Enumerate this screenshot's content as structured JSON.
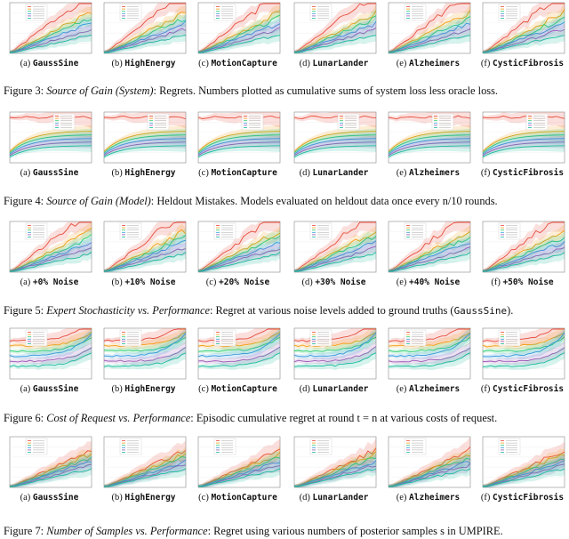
{
  "figures": [
    {
      "id": "fig3",
      "kind": "system",
      "panels": [
        {
          "letter": "(a)",
          "name": "GaussSine"
        },
        {
          "letter": "(b)",
          "name": "HighEnergy"
        },
        {
          "letter": "(c)",
          "name": "MotionCapture"
        },
        {
          "letter": "(d)",
          "name": "LunarLander"
        },
        {
          "letter": "(e)",
          "name": "Alzheimers"
        },
        {
          "letter": "(f)",
          "name": "CysticFibrosis"
        }
      ],
      "caption": {
        "label": "Figure 3:",
        "title": "Source of Gain (System)",
        "text": ": Regrets. Numbers plotted as cumulative sums of system loss less oracle loss."
      }
    },
    {
      "id": "fig4",
      "kind": "model",
      "panels": [
        {
          "letter": "(a)",
          "name": "GaussSine"
        },
        {
          "letter": "(b)",
          "name": "HighEnergy"
        },
        {
          "letter": "(c)",
          "name": "MotionCapture"
        },
        {
          "letter": "(d)",
          "name": "LunarLander"
        },
        {
          "letter": "(e)",
          "name": "Alzheimers"
        },
        {
          "letter": "(f)",
          "name": "CysticFibrosis"
        }
      ],
      "caption": {
        "label": "Figure 4:",
        "title": "Source of Gain (Model)",
        "text": ": Heldout Mistakes. Models evaluated on heldout data once every n/10 rounds."
      }
    },
    {
      "id": "fig5",
      "kind": "noise",
      "panels": [
        {
          "letter": "(a)",
          "name": "+0% Noise"
        },
        {
          "letter": "(b)",
          "name": "+10% Noise"
        },
        {
          "letter": "(c)",
          "name": "+20% Noise"
        },
        {
          "letter": "(d)",
          "name": "+30% Noise"
        },
        {
          "letter": "(e)",
          "name": "+40% Noise"
        },
        {
          "letter": "(f)",
          "name": "+50% Noise"
        }
      ],
      "caption": {
        "label": "Figure 5:",
        "title": "Expert Stochasticity vs. Performance",
        "text": ": Regret at various noise levels added to ground truths (",
        "mono": "GaussSine",
        "tail": ")."
      }
    },
    {
      "id": "fig6",
      "kind": "cost",
      "panels": [
        {
          "letter": "(a)",
          "name": "GaussSine"
        },
        {
          "letter": "(b)",
          "name": "HighEnergy"
        },
        {
          "letter": "(c)",
          "name": "MotionCapture"
        },
        {
          "letter": "(d)",
          "name": "LunarLander"
        },
        {
          "letter": "(e)",
          "name": "Alzheimers"
        },
        {
          "letter": "(f)",
          "name": "CysticFibrosis"
        }
      ],
      "caption": {
        "label": "Figure 6:",
        "title": "Cost of Request vs. Performance",
        "text": ": Episodic cumulative regret at round t = n at various costs of request."
      }
    },
    {
      "id": "fig7",
      "kind": "samples",
      "panels": [
        {
          "letter": "(a)",
          "name": "GaussSine"
        },
        {
          "letter": "(b)",
          "name": "HighEnergy"
        },
        {
          "letter": "(c)",
          "name": "MotionCapture"
        },
        {
          "letter": "(d)",
          "name": "LunarLander"
        },
        {
          "letter": "(e)",
          "name": "Alzheimers"
        },
        {
          "letter": "(f)",
          "name": "CysticFibrosis"
        }
      ],
      "caption": {
        "label": "Figure 7:",
        "title": "Number of Samples vs. Performance",
        "text": ": Regret using various numbers of posterior samples s in UMPIRE."
      }
    }
  ],
  "palette": [
    "#e74c3c",
    "#f39c12",
    "#2ecc71",
    "#3498db",
    "#9b59b6",
    "#1abc9c",
    "#e67e22",
    "#34495e"
  ]
}
